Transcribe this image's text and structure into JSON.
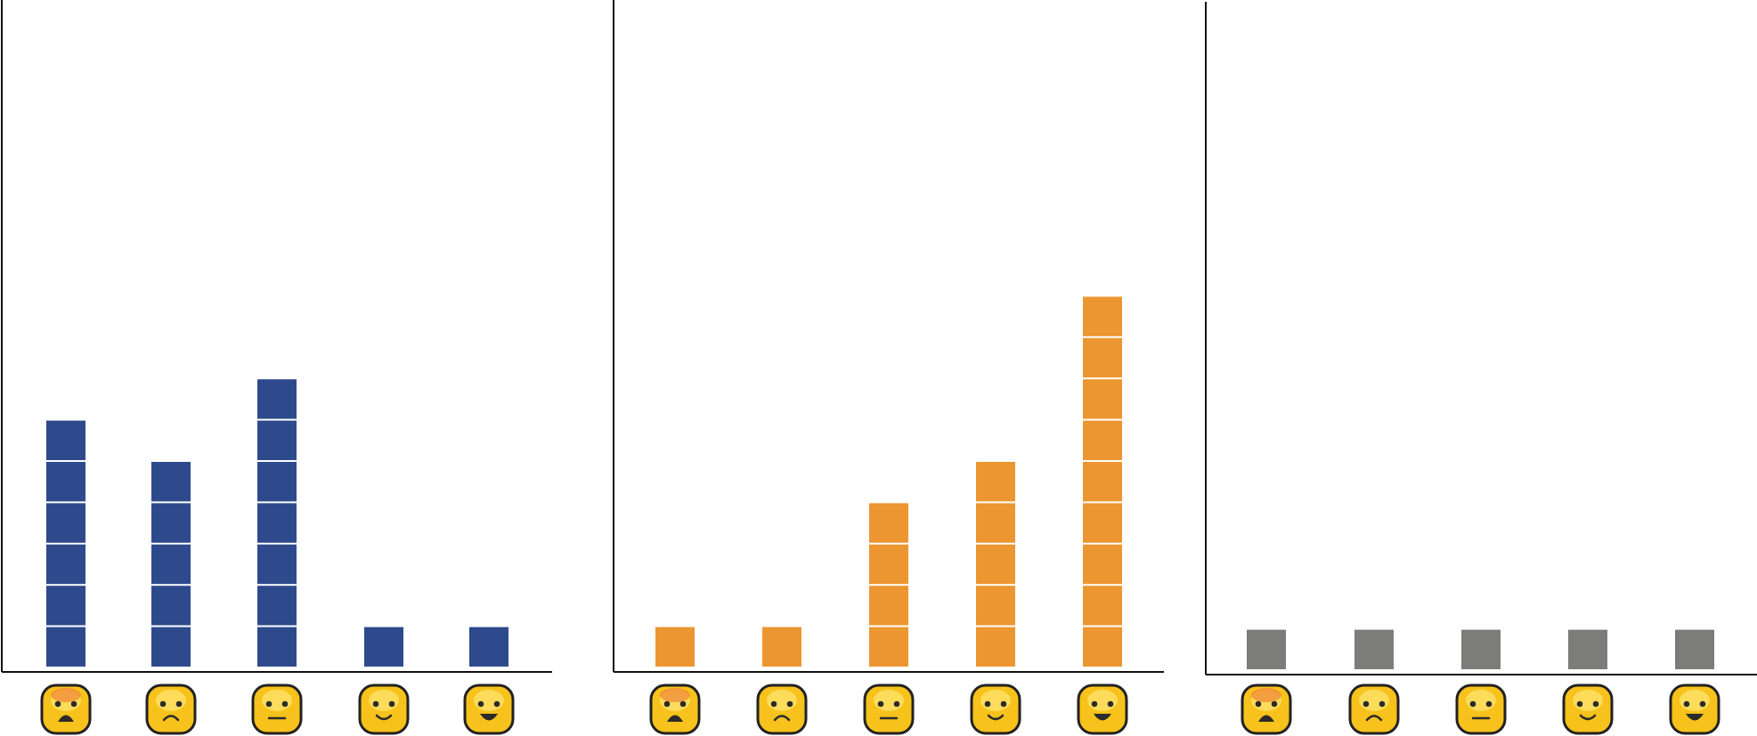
{
  "chart_data": [
    {
      "type": "bar",
      "style": "stacked unit squares (pictograph)",
      "categories": [
        "very-unhappy",
        "unhappy",
        "neutral",
        "happy",
        "very-happy"
      ],
      "category_icons": [
        "anguished-face-icon",
        "frowning-face-icon",
        "neutral-face-icon",
        "smiling-face-icon",
        "grinning-face-icon"
      ],
      "values": [
        6,
        5,
        7,
        1,
        1
      ],
      "color": "#2e4a8c",
      "title": "",
      "xlabel": "",
      "ylabel": "",
      "grid": false
    },
    {
      "type": "bar",
      "style": "stacked unit squares (pictograph)",
      "categories": [
        "very-unhappy",
        "unhappy",
        "neutral",
        "happy",
        "very-happy"
      ],
      "category_icons": [
        "anguished-face-icon",
        "frowning-face-icon",
        "neutral-face-icon",
        "smiling-face-icon",
        "grinning-face-icon"
      ],
      "values": [
        1,
        1,
        4,
        5,
        9
      ],
      "color": "#ec9631",
      "title": "",
      "xlabel": "",
      "ylabel": "",
      "grid": false
    },
    {
      "type": "bar",
      "style": "stacked unit squares (pictograph)",
      "categories": [
        "very-unhappy",
        "unhappy",
        "neutral",
        "happy",
        "very-happy"
      ],
      "category_icons": [
        "anguished-face-icon",
        "frowning-face-icon",
        "neutral-face-icon",
        "smiling-face-icon",
        "grinning-face-icon"
      ],
      "values": [
        1,
        1,
        1,
        1,
        1
      ],
      "color": "#7c7d7b",
      "title": "",
      "xlabel": "",
      "ylabel": "",
      "grid": false
    }
  ]
}
